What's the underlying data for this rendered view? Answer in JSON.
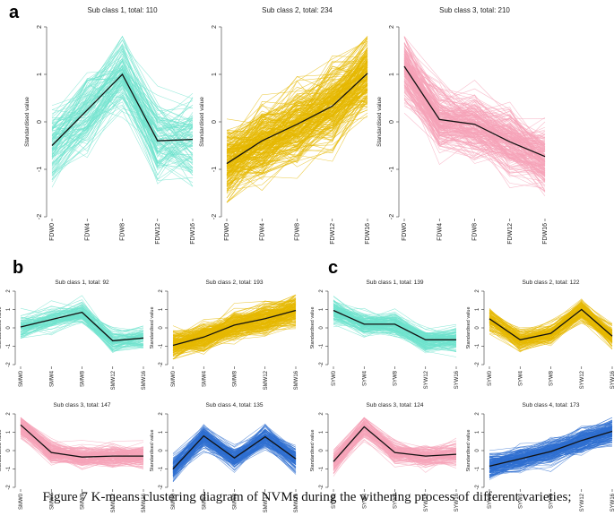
{
  "panel_labels": {
    "a": "a",
    "b": "b",
    "c": "c"
  },
  "caption": "Figure 7 K-means clustering diagram of NVMs during the withering process of different varieties;",
  "colors": {
    "teal": "#6fe3cd",
    "gold": "#e6b800",
    "pink": "#f5a3b8",
    "blue": "#2f6fd0",
    "mean": "#111111"
  },
  "chart_data": [
    {
      "panel": "a",
      "type": "line",
      "title": "Sub class 1, total: 110",
      "ylabel": "Standardised value",
      "categories": [
        "FDW0",
        "FDW4",
        "FDW8",
        "FDW12",
        "FDW16"
      ],
      "ylim": [
        -2,
        2
      ],
      "yticks": [
        -2,
        -1,
        0,
        1,
        2
      ],
      "color": "teal",
      "count": 110,
      "spread": 0.75,
      "series": [
        {
          "name": "Cluster mean",
          "values": [
            -0.5,
            0.25,
            1.0,
            -0.4,
            -0.37
          ]
        }
      ]
    },
    {
      "panel": "a",
      "type": "line",
      "title": "Sub class 2, total: 234",
      "ylabel": "Standardised value",
      "categories": [
        "FDW0",
        "FDW4",
        "FDW8",
        "FDW12",
        "FDW16"
      ],
      "ylim": [
        -2,
        2
      ],
      "yticks": [
        -2,
        -1,
        0,
        1,
        2
      ],
      "color": "gold",
      "count": 234,
      "spread": 0.7,
      "series": [
        {
          "name": "Cluster mean",
          "values": [
            -0.88,
            -0.4,
            -0.05,
            0.33,
            1.02
          ]
        }
      ]
    },
    {
      "panel": "a",
      "type": "line",
      "title": "Sub class 3, total: 210",
      "ylabel": "Standardised value",
      "categories": [
        "FDW0",
        "FDW4",
        "FDW8",
        "FDW12",
        "FDW16"
      ],
      "ylim": [
        -2,
        2
      ],
      "yticks": [
        -2,
        -1,
        0,
        1,
        2
      ],
      "color": "pink",
      "count": 210,
      "spread": 0.6,
      "series": [
        {
          "name": "Cluster mean",
          "values": [
            1.17,
            0.05,
            -0.05,
            -0.42,
            -0.73
          ]
        }
      ]
    },
    {
      "panel": "b",
      "type": "line",
      "title": "Sub class 1, total: 92",
      "ylabel": "Standardised value",
      "categories": [
        "SMW0",
        "SMW4",
        "SMW8",
        "SMW12",
        "SMW16"
      ],
      "ylim": [
        -2,
        2
      ],
      "yticks": [
        -2,
        -1,
        0,
        1,
        2
      ],
      "color": "teal",
      "count": 92,
      "spread": 0.6,
      "series": [
        {
          "name": "Cluster mean",
          "values": [
            0.05,
            0.45,
            0.85,
            -0.7,
            -0.55
          ]
        }
      ]
    },
    {
      "panel": "b",
      "type": "line",
      "title": "Sub class 2, total: 193",
      "ylabel": "Standardised value",
      "categories": [
        "SMW0",
        "SMW4",
        "SMW8",
        "SMW12",
        "SMW16"
      ],
      "ylim": [
        -2,
        2
      ],
      "yticks": [
        -2,
        -1,
        0,
        1,
        2
      ],
      "color": "gold",
      "count": 193,
      "spread": 0.7,
      "series": [
        {
          "name": "Cluster mean",
          "values": [
            -0.95,
            -0.5,
            0.15,
            0.5,
            0.95
          ]
        }
      ]
    },
    {
      "panel": "b",
      "type": "line",
      "title": "Sub class 3, total: 147",
      "ylabel": "Standardised value",
      "categories": [
        "SMW0",
        "SMW4",
        "SMW8",
        "SMW12",
        "SMW16"
      ],
      "ylim": [
        -2,
        2
      ],
      "yticks": [
        -2,
        -1,
        0,
        1,
        2
      ],
      "color": "pink",
      "count": 147,
      "spread": 0.55,
      "series": [
        {
          "name": "Cluster mean",
          "values": [
            1.4,
            -0.1,
            -0.35,
            -0.3,
            -0.3
          ]
        }
      ]
    },
    {
      "panel": "b",
      "type": "line",
      "title": "Sub class 4, total: 135",
      "ylabel": "Standardised value",
      "categories": [
        "SMW0",
        "SMW4",
        "SMW8",
        "SMW12",
        "SMW16"
      ],
      "ylim": [
        -2,
        2
      ],
      "yticks": [
        -2,
        -1,
        0,
        1,
        2
      ],
      "color": "blue",
      "count": 135,
      "spread": 0.55,
      "series": [
        {
          "name": "Cluster mean",
          "values": [
            -1.0,
            0.8,
            -0.4,
            0.75,
            -0.45
          ]
        }
      ]
    },
    {
      "panel": "c",
      "type": "line",
      "title": "Sub class 1, total: 139",
      "ylabel": "Standardised value",
      "categories": [
        "SYW0",
        "SYW4",
        "SYW8",
        "SYW12",
        "SYW16"
      ],
      "ylim": [
        -2,
        2
      ],
      "yticks": [
        -2,
        -1,
        0,
        1,
        2
      ],
      "color": "teal",
      "count": 139,
      "spread": 0.55,
      "series": [
        {
          "name": "Cluster mean",
          "values": [
            0.95,
            0.2,
            0.2,
            -0.65,
            -0.65
          ]
        }
      ]
    },
    {
      "panel": "c",
      "type": "line",
      "title": "Sub class 2, total: 122",
      "ylabel": "Standardised value",
      "categories": [
        "SYW0",
        "SYW4",
        "SYW8",
        "SYW12",
        "SYW16"
      ],
      "ylim": [
        -2,
        2
      ],
      "yticks": [
        -2,
        -1,
        0,
        1,
        2
      ],
      "color": "gold",
      "count": 122,
      "spread": 0.55,
      "series": [
        {
          "name": "Cluster mean",
          "values": [
            0.5,
            -0.65,
            -0.3,
            1.0,
            -0.45
          ]
        }
      ]
    },
    {
      "panel": "c",
      "type": "line",
      "title": "Sub class 3, total: 124",
      "ylabel": "Standardised value",
      "categories": [
        "SYW0",
        "SYW4",
        "SYW8",
        "SYW12",
        "SYW16"
      ],
      "ylim": [
        -2,
        2
      ],
      "yticks": [
        -2,
        -1,
        0,
        1,
        2
      ],
      "color": "pink",
      "count": 124,
      "spread": 0.55,
      "series": [
        {
          "name": "Cluster mean",
          "values": [
            -0.6,
            1.3,
            -0.1,
            -0.3,
            -0.2
          ]
        }
      ]
    },
    {
      "panel": "c",
      "type": "line",
      "title": "Sub class 4, total: 173",
      "ylabel": "Standardised value",
      "categories": [
        "SYW0",
        "SYW4",
        "SYW8",
        "SYW12",
        "SYW16"
      ],
      "ylim": [
        -2,
        2
      ],
      "yticks": [
        -2,
        -1,
        0,
        1,
        2
      ],
      "color": "blue",
      "count": 173,
      "spread": 0.55,
      "series": [
        {
          "name": "Cluster mean",
          "values": [
            -0.85,
            -0.45,
            -0.05,
            0.55,
            1.05
          ]
        }
      ]
    }
  ]
}
